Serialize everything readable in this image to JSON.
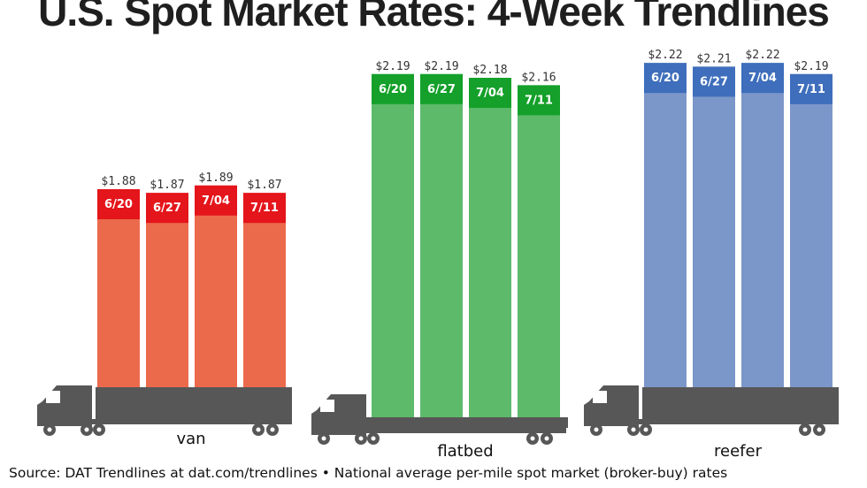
{
  "title": "U.S. Spot Market Rates: 4-Week Trendlines",
  "source_text": "Source: DAT Trendlines at dat.com/trendlines • National average per-mile spot market (broker-buy) rates",
  "colors": {
    "van": {
      "body": "#ec6a4c",
      "header": "#e4151b"
    },
    "flatbed": {
      "body": "#5cba6a",
      "header": "#14a02a"
    },
    "reefer": {
      "body": "#7b97c9",
      "header": "#3e6ebc"
    },
    "truck": "#575757"
  },
  "chart_data": {
    "type": "bar",
    "categories": [
      "6/20",
      "6/27",
      "7/04",
      "7/11"
    ],
    "series": [
      {
        "name": "van",
        "values": [
          1.88,
          1.87,
          1.89,
          1.87
        ],
        "labels": [
          "$1.88",
          "$1.87",
          "$1.89",
          "$1.87"
        ]
      },
      {
        "name": "flatbed",
        "values": [
          2.19,
          2.19,
          2.18,
          2.16
        ],
        "labels": [
          "$2.19",
          "$2.19",
          "$2.18",
          "$2.16"
        ]
      },
      {
        "name": "reefer",
        "values": [
          2.22,
          2.21,
          2.22,
          2.19
        ],
        "labels": [
          "$2.22",
          "$2.21",
          "$2.22",
          "$2.19"
        ]
      }
    ],
    "title": "U.S. Spot Market Rates: 4-Week Trendlines",
    "xlabel": "",
    "ylabel": ""
  }
}
